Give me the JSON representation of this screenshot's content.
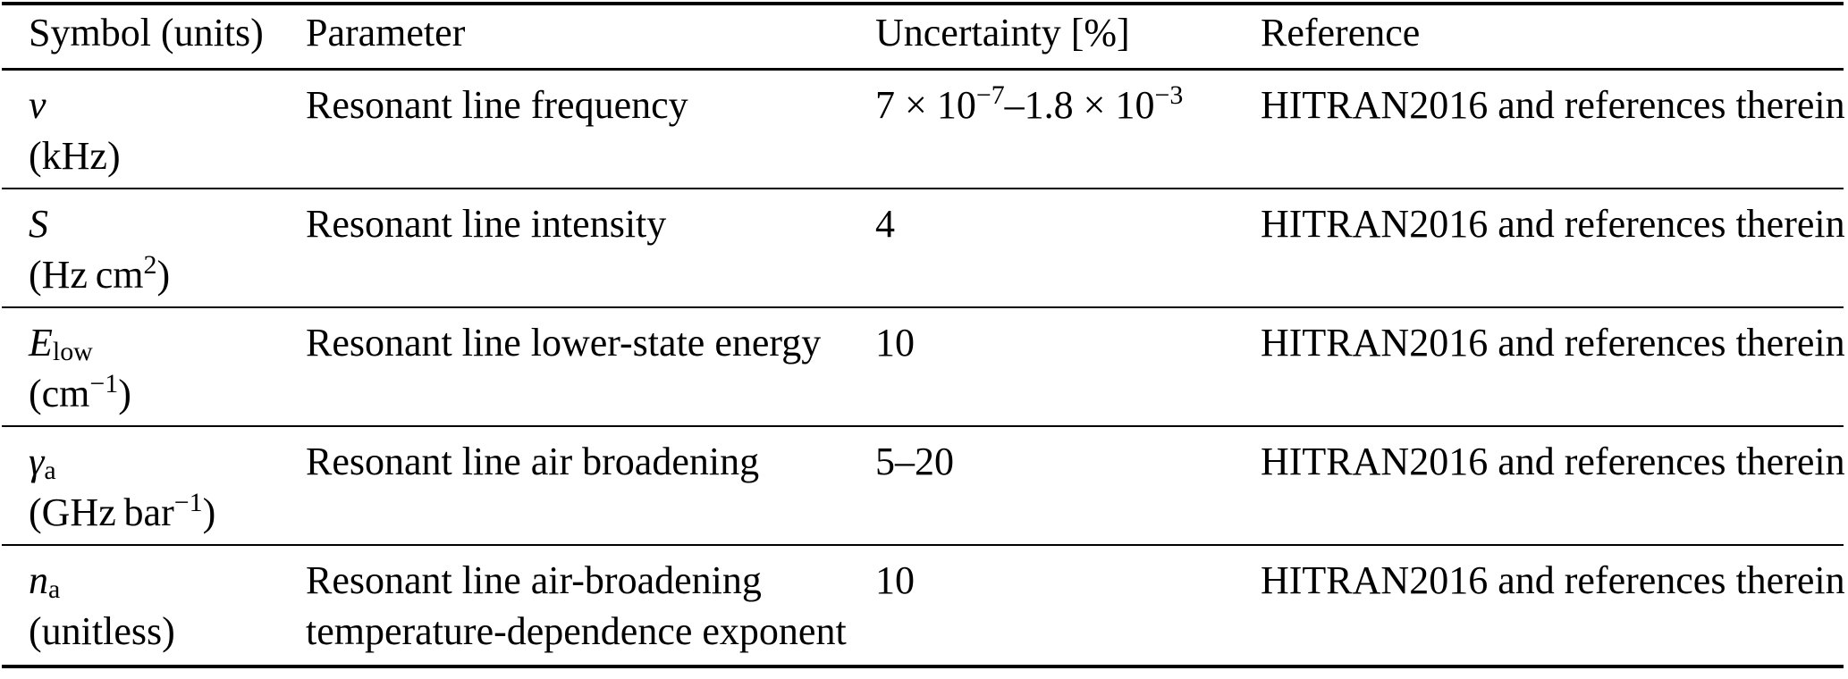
{
  "table": {
    "columns": [
      "Symbol (units)",
      "Parameter",
      "Uncertainty [%]",
      "Reference"
    ],
    "rows": [
      {
        "symbol": [
          {
            "t": "ν"
          }
        ],
        "unit": [
          {
            "t": "(kHz)"
          }
        ],
        "parameter": "Resonant line frequency",
        "uncertainty": [
          {
            "t": "7 × 10"
          },
          {
            "sup": "−7"
          },
          {
            "t": "–1.8 × 10"
          },
          {
            "sup": "−3"
          }
        ],
        "reference": "HITRAN2016 and references therein"
      },
      {
        "symbol": [
          {
            "t": "S"
          }
        ],
        "unit": [
          {
            "t": "(Hz cm"
          },
          {
            "sup": "2"
          },
          {
            "t": ")"
          }
        ],
        "parameter": "Resonant line intensity",
        "uncertainty": [
          {
            "t": "4"
          }
        ],
        "reference": "HITRAN2016 and references therein"
      },
      {
        "symbol": [
          {
            "t": "E"
          },
          {
            "sub": "low"
          }
        ],
        "unit": [
          {
            "t": "(cm"
          },
          {
            "sup": "−1"
          },
          {
            "t": ")"
          }
        ],
        "parameter": "Resonant line lower-state energy",
        "uncertainty": [
          {
            "t": "10"
          }
        ],
        "reference": "HITRAN2016 and references therein"
      },
      {
        "symbol": [
          {
            "t": "γ"
          },
          {
            "sub": "a"
          }
        ],
        "unit": [
          {
            "t": "(GHz bar"
          },
          {
            "sup": "−1"
          },
          {
            "t": ")"
          }
        ],
        "parameter": "Resonant line air broadening",
        "uncertainty": [
          {
            "t": "5–20"
          }
        ],
        "reference": "HITRAN2016 and references therein"
      },
      {
        "symbol": [
          {
            "t": "n"
          },
          {
            "sub": "a"
          }
        ],
        "unit": [
          {
            "t": "(unitless)"
          }
        ],
        "parameter": "Resonant line air-broadening temperature-dependence exponent",
        "uncertainty": [
          {
            "t": "10"
          }
        ],
        "reference": "HITRAN2016 and references therein"
      }
    ]
  }
}
